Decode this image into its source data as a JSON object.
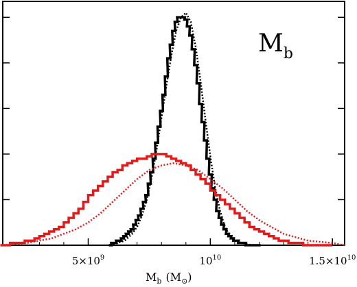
{
  "chart_data": {
    "type": "line",
    "title": "",
    "panel_label": "M",
    "panel_label_sub": "b",
    "xlabel_main": "M",
    "xlabel_sub": "b",
    "xlabel_unit": "(M",
    "xlabel_unit_close": ")",
    "xlabel_unit_symbol": "⊙",
    "ylabel": "",
    "xlim": [
      1500000000.0,
      15500000000.0
    ],
    "ylim": [
      0,
      1.07
    ],
    "xticks": [
      {
        "value": 5000000000.0,
        "mantissa": "5×10",
        "exp": "9"
      },
      {
        "value": 10000000000.0,
        "mantissa": "10",
        "exp": "10"
      },
      {
        "value": 15000000000.0,
        "mantissa": "1.5×10",
        "exp": "10"
      }
    ],
    "grid": false,
    "legend": "none",
    "colors": {
      "black": "#000000",
      "red": "#e31a1a"
    },
    "series": [
      {
        "style": "histogram",
        "color": "black",
        "bin_width": 120000000.0,
        "x": [
          5900000000.0,
          6000000000.0,
          6100000000.0,
          6200000000.0,
          6300000000.0,
          6400000000.0,
          6500000000.0,
          6600000000.0,
          6700000000.0,
          6800000000.0,
          6900000000.0,
          7000000000.0,
          7100000000.0,
          7200000000.0,
          7300000000.0,
          7400000000.0,
          7500000000.0,
          7600000000.0,
          7700000000.0,
          7800000000.0,
          7900000000.0,
          8000000000.0,
          8100000000.0,
          8200000000.0,
          8300000000.0,
          8400000000.0,
          8500000000.0,
          8600000000.0,
          8700000000.0,
          8800000000.0,
          8900000000.0,
          9000000000.0,
          9100000000.0,
          9200000000.0,
          9300000000.0,
          9400000000.0,
          9500000000.0,
          9600000000.0,
          9700000000.0,
          9800000000.0,
          9900000000.0,
          10000000000.0,
          10100000000.0,
          10200000000.0,
          10300000000.0,
          10400000000.0,
          10500000000.0,
          10600000000.0,
          10700000000.0,
          10800000000.0,
          10900000000.0,
          11000000000.0,
          11100000000.0,
          11200000000.0,
          11300000000.0,
          11400000000.0,
          11500000000.0,
          11600000000.0,
          11700000000.0,
          11800000000.0,
          11900000000.0,
          12000000000.0
        ],
        "y": [
          0.0,
          0.01,
          0.01,
          0.02,
          0.02,
          0.03,
          0.04,
          0.05,
          0.06,
          0.07,
          0.09,
          0.11,
          0.13,
          0.16,
          0.19,
          0.22,
          0.27,
          0.32,
          0.38,
          0.45,
          0.52,
          0.59,
          0.66,
          0.74,
          0.82,
          0.88,
          0.94,
          0.98,
          1.0,
          1.0,
          1.0,
          0.99,
          0.96,
          0.92,
          0.86,
          0.79,
          0.71,
          0.62,
          0.54,
          0.46,
          0.38,
          0.31,
          0.25,
          0.2,
          0.15,
          0.12,
          0.09,
          0.07,
          0.05,
          0.04,
          0.03,
          0.02,
          0.02,
          0.01,
          0.01,
          0.01,
          0.0,
          0.0,
          0.0,
          0.0,
          0.0,
          0.0
        ]
      },
      {
        "style": "dotted",
        "color": "black",
        "x": [
          5900000000.0,
          6200000000.0,
          6500000000.0,
          6800000000.0,
          7000000000.0,
          7200000000.0,
          7400000000.0,
          7600000000.0,
          7800000000.0,
          8000000000.0,
          8200000000.0,
          8400000000.0,
          8600000000.0,
          8800000000.0,
          9000000000.0,
          9200000000.0,
          9400000000.0,
          9600000000.0,
          9800000000.0,
          10000000000.0,
          10200000000.0,
          10400000000.0,
          10600000000.0,
          10800000000.0,
          11000000000.0,
          11300000000.0,
          11700000000.0
        ],
        "y": [
          0.0,
          0.01,
          0.02,
          0.05,
          0.08,
          0.13,
          0.2,
          0.3,
          0.42,
          0.56,
          0.7,
          0.83,
          0.94,
          1.0,
          1.02,
          0.98,
          0.87,
          0.72,
          0.55,
          0.39,
          0.25,
          0.15,
          0.08,
          0.04,
          0.02,
          0.01,
          0.0
        ]
      },
      {
        "style": "histogram",
        "color": "red",
        "bin_width": 200000000.0,
        "x": [
          1500000000.0,
          1700000000.0,
          1900000000.0,
          2100000000.0,
          2300000000.0,
          2500000000.0,
          2700000000.0,
          2900000000.0,
          3100000000.0,
          3300000000.0,
          3500000000.0,
          3700000000.0,
          3900000000.0,
          4100000000.0,
          4300000000.0,
          4500000000.0,
          4700000000.0,
          4900000000.0,
          5100000000.0,
          5300000000.0,
          5500000000.0,
          5700000000.0,
          5900000000.0,
          6100000000.0,
          6300000000.0,
          6500000000.0,
          6700000000.0,
          6900000000.0,
          7100000000.0,
          7300000000.0,
          7500000000.0,
          7700000000.0,
          7900000000.0,
          8100000000.0,
          8300000000.0,
          8500000000.0,
          8700000000.0,
          8900000000.0,
          9100000000.0,
          9300000000.0,
          9500000000.0,
          9700000000.0,
          9900000000.0,
          10100000000.0,
          10300000000.0,
          10500000000.0,
          10700000000.0,
          10900000000.0,
          11100000000.0,
          11300000000.0,
          11500000000.0,
          11700000000.0,
          11900000000.0,
          12100000000.0,
          12300000000.0,
          12500000000.0,
          12700000000.0,
          12900000000.0,
          13100000000.0,
          13300000000.0,
          13500000000.0,
          13700000000.0,
          13900000000.0,
          14100000000.0,
          14300000000.0,
          14500000000.0,
          14700000000.0,
          14900000000.0
        ],
        "y": [
          0.0,
          0.0,
          0.01,
          0.01,
          0.01,
          0.02,
          0.02,
          0.03,
          0.04,
          0.05,
          0.06,
          0.07,
          0.08,
          0.1,
          0.12,
          0.14,
          0.16,
          0.19,
          0.22,
          0.24,
          0.26,
          0.28,
          0.3,
          0.32,
          0.33,
          0.35,
          0.36,
          0.37,
          0.38,
          0.38,
          0.39,
          0.4,
          0.4,
          0.4,
          0.39,
          0.38,
          0.37,
          0.36,
          0.35,
          0.33,
          0.31,
          0.29,
          0.27,
          0.24,
          0.22,
          0.2,
          0.18,
          0.16,
          0.14,
          0.12,
          0.1,
          0.08,
          0.07,
          0.06,
          0.05,
          0.04,
          0.03,
          0.02,
          0.02,
          0.01,
          0.01,
          0.01,
          0.0,
          0.0,
          0.0,
          0.0,
          0.0,
          0.0
        ]
      },
      {
        "style": "dotted",
        "color": "red",
        "x": [
          1500000000.0,
          2500000000.0,
          3500000000.0,
          4500000000.0,
          5000000000.0,
          5500000000.0,
          6000000000.0,
          6500000000.0,
          7000000000.0,
          7500000000.0,
          8000000000.0,
          8500000000.0,
          9000000000.0,
          9500000000.0,
          10000000000.0,
          10500000000.0,
          11000000000.0,
          11500000000.0,
          12000000000.0,
          13000000000.0,
          14000000000.0,
          15000000000.0,
          15500000000.0
        ],
        "y": [
          0.0,
          0.01,
          0.03,
          0.07,
          0.1,
          0.14,
          0.19,
          0.24,
          0.29,
          0.33,
          0.35,
          0.36,
          0.35,
          0.33,
          0.29,
          0.25,
          0.2,
          0.15,
          0.11,
          0.05,
          0.02,
          0.01,
          0.0
        ]
      }
    ]
  }
}
